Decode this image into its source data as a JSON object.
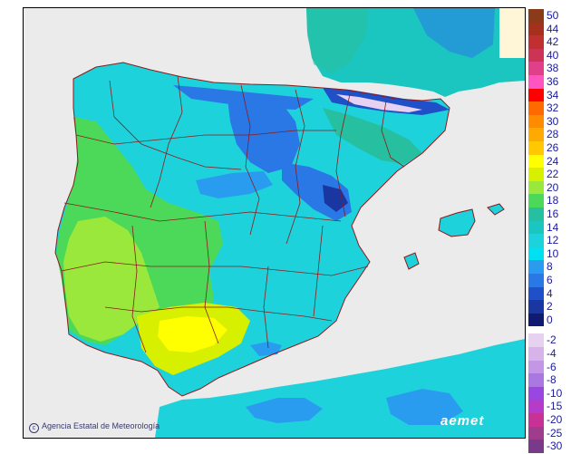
{
  "map": {
    "credit_text": "Agencia Estatal de Meteorología",
    "credit_symbol": "c",
    "logo_text": "aemet",
    "sea_color": "#ebebeb",
    "border_color": "#8b1a1a"
  },
  "legend": {
    "positive": [
      {
        "label": "50",
        "color": "#8b3a1a"
      },
      {
        "label": "44",
        "color": "#a5301e"
      },
      {
        "label": "42",
        "color": "#c03030"
      },
      {
        "label": "40",
        "color": "#cc3355"
      },
      {
        "label": "38",
        "color": "#e0408a"
      },
      {
        "label": "36",
        "color": "#ff55c0"
      },
      {
        "label": "34",
        "color": "#ff0000"
      },
      {
        "label": "32",
        "color": "#ff6a00"
      },
      {
        "label": "30",
        "color": "#ff8c00"
      },
      {
        "label": "28",
        "color": "#ffaa00"
      },
      {
        "label": "26",
        "color": "#ffc800"
      },
      {
        "label": "24",
        "color": "#ffff00"
      },
      {
        "label": "22",
        "color": "#d6f000"
      },
      {
        "label": "20",
        "color": "#9be83c"
      },
      {
        "label": "18",
        "color": "#4cd95a"
      },
      {
        "label": "16",
        "color": "#26bfa0"
      },
      {
        "label": "14",
        "color": "#1cc6c0"
      },
      {
        "label": "12",
        "color": "#1ed2dc"
      },
      {
        "label": "10",
        "color": "#00e0f0"
      },
      {
        "label": "8",
        "color": "#2a9cf0"
      },
      {
        "label": "6",
        "color": "#2a78e6"
      },
      {
        "label": "4",
        "color": "#2050c8"
      },
      {
        "label": "2",
        "color": "#1a36a0"
      },
      {
        "label": "0",
        "color": "#101a70"
      }
    ],
    "negative": [
      {
        "label": "-2",
        "color": "#e6d2f0"
      },
      {
        "label": "-4",
        "color": "#d6b4ea"
      },
      {
        "label": "-6",
        "color": "#c496e6"
      },
      {
        "label": "-8",
        "color": "#aa78e0"
      },
      {
        "label": "-10",
        "color": "#9a46e0"
      },
      {
        "label": "-15",
        "color": "#b43cc8"
      },
      {
        "label": "-20",
        "color": "#c83296"
      },
      {
        "label": "-25",
        "color": "#a03c8c"
      },
      {
        "label": "-30",
        "color": "#7a3a8a"
      }
    ]
  }
}
